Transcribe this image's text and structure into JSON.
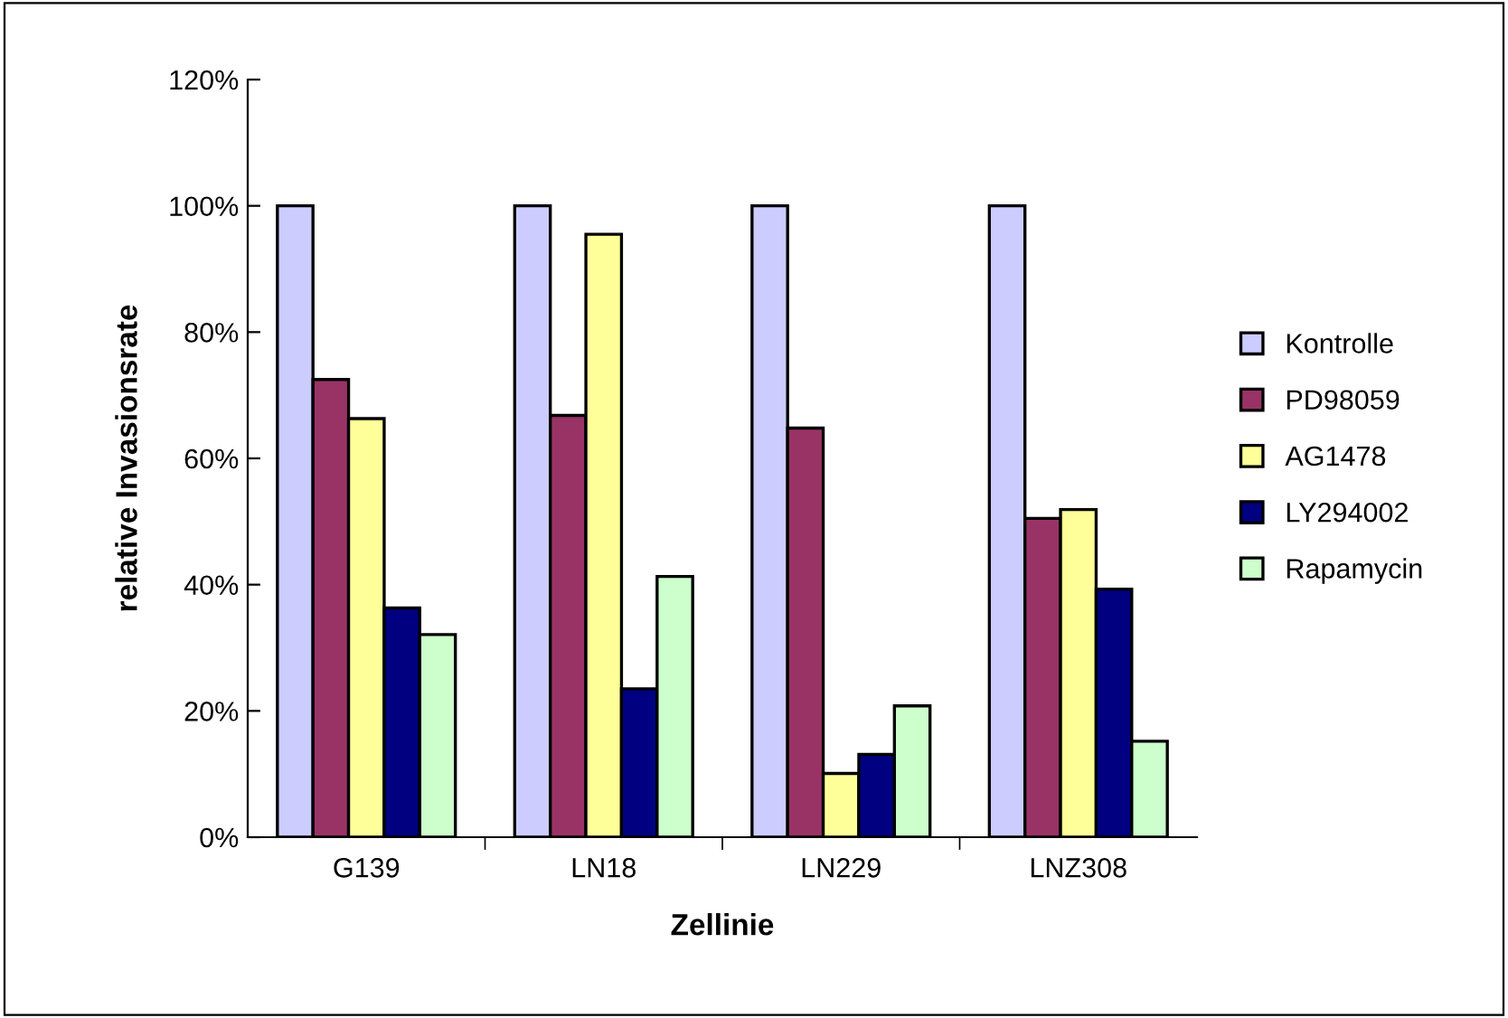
{
  "chart_data": {
    "type": "bar",
    "xlabel": "Zellinie",
    "ylabel": "relative Invasionsrate",
    "categories": [
      "G139",
      "LN18",
      "LN229",
      "LNZ308"
    ],
    "series": [
      {
        "name": "Kontrolle",
        "color": "#ccccff",
        "values": [
          100,
          100,
          100,
          100
        ]
      },
      {
        "name": "PD98059",
        "color": "#993366",
        "values": [
          72.5,
          66.8,
          64.8,
          50.5
        ]
      },
      {
        "name": "AG1478",
        "color": "#ffff99",
        "values": [
          66.3,
          95.5,
          10.1,
          51.9
        ]
      },
      {
        "name": "LY294002",
        "color": "#000080",
        "values": [
          36.3,
          23.5,
          13.1,
          39.3
        ]
      },
      {
        "name": "Rapamycin",
        "color": "#ccffcc",
        "values": [
          32.1,
          41.3,
          20.8,
          15.2
        ]
      }
    ],
    "ylim": [
      0,
      120
    ],
    "yticks": [
      {
        "value": 0,
        "label": "0%"
      },
      {
        "value": 20,
        "label": "20%"
      },
      {
        "value": 40,
        "label": "40%"
      },
      {
        "value": 60,
        "label": "60%"
      },
      {
        "value": 80,
        "label": "80%"
      },
      {
        "value": 100,
        "label": "100%"
      },
      {
        "value": 120,
        "label": "120%"
      }
    ],
    "grid": false,
    "legend": "right"
  }
}
